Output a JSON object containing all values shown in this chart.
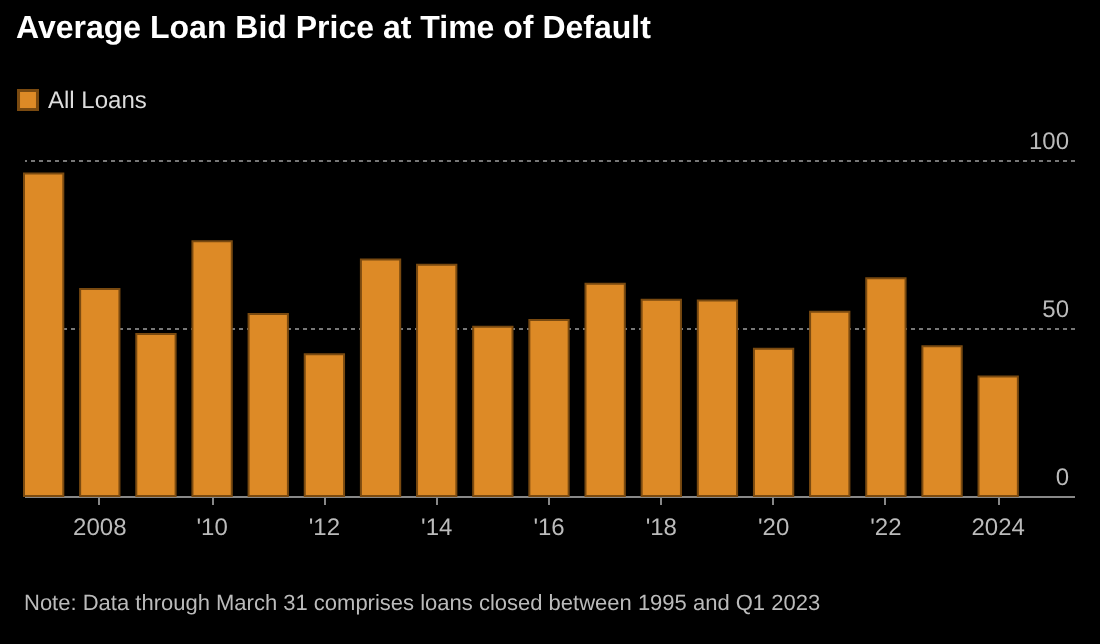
{
  "chart_data": {
    "type": "bar",
    "title": "Average Loan Bid Price at Time of Default",
    "categories": [
      null,
      "2008",
      null,
      "'10",
      null,
      "'12",
      null,
      "'14",
      null,
      "'16",
      null,
      "'18",
      null,
      "'20",
      null,
      "'22",
      null,
      "2024"
    ],
    "series": [
      {
        "name": "All Loans",
        "color": "#dd8a26",
        "values": [
          96,
          61.6,
          48.2,
          75.8,
          54.2,
          42.2,
          70.4,
          68.8,
          50.4,
          52.4,
          63.2,
          58.4,
          58.2,
          43.8,
          54.8,
          64.8,
          44.6,
          35.6
        ]
      }
    ],
    "ylim": [
      0,
      100
    ],
    "yticks": [
      0,
      50,
      100
    ],
    "grid": "y",
    "legend": "top left",
    "annotations": [
      "Note: Data through March 31 comprises loans closed between 1995 and Q1 2023"
    ]
  }
}
